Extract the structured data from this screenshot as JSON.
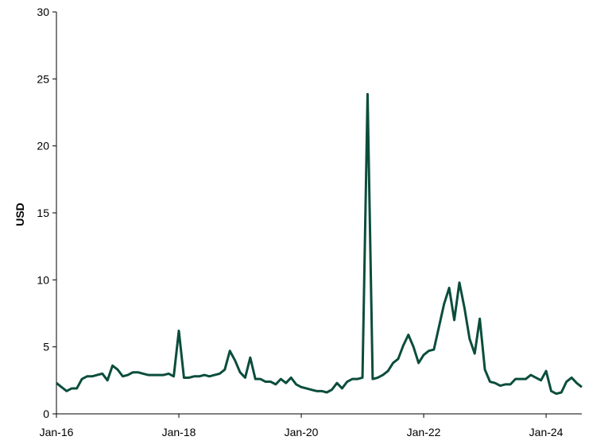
{
  "chart_data": {
    "type": "line",
    "y_label": "USD",
    "x": [
      "2016-01",
      "2016-02",
      "2016-03",
      "2016-04",
      "2016-05",
      "2016-06",
      "2016-07",
      "2016-08",
      "2016-09",
      "2016-10",
      "2016-11",
      "2016-12",
      "2017-01",
      "2017-02",
      "2017-03",
      "2017-04",
      "2017-05",
      "2017-06",
      "2017-07",
      "2017-08",
      "2017-09",
      "2017-10",
      "2017-11",
      "2017-12",
      "2018-01",
      "2018-02",
      "2018-03",
      "2018-04",
      "2018-05",
      "2018-06",
      "2018-07",
      "2018-08",
      "2018-09",
      "2018-10",
      "2018-11",
      "2018-12",
      "2019-01",
      "2019-02",
      "2019-03",
      "2019-04",
      "2019-05",
      "2019-06",
      "2019-07",
      "2019-08",
      "2019-09",
      "2019-10",
      "2019-11",
      "2019-12",
      "2020-01",
      "2020-02",
      "2020-03",
      "2020-04",
      "2020-05",
      "2020-06",
      "2020-07",
      "2020-08",
      "2020-09",
      "2020-10",
      "2020-11",
      "2020-12",
      "2021-01",
      "2021-02",
      "2021-03",
      "2021-04",
      "2021-05",
      "2021-06",
      "2021-07",
      "2021-08",
      "2021-09",
      "2021-10",
      "2021-11",
      "2021-12",
      "2022-01",
      "2022-02",
      "2022-03",
      "2022-04",
      "2022-05",
      "2022-06",
      "2022-07",
      "2022-08",
      "2022-09",
      "2022-10",
      "2022-11",
      "2022-12",
      "2023-01",
      "2023-02",
      "2023-03",
      "2023-04",
      "2023-05",
      "2023-06",
      "2023-07",
      "2023-08",
      "2023-09",
      "2023-10",
      "2023-11",
      "2023-12",
      "2024-01",
      "2024-02",
      "2024-03",
      "2024-04",
      "2024-05",
      "2024-06",
      "2024-07",
      "2024-08"
    ],
    "series": [
      {
        "name": "USD",
        "color": "#0b4d3c",
        "values": [
          2.3,
          2.0,
          1.7,
          1.9,
          1.9,
          2.6,
          2.8,
          2.8,
          2.9,
          3.0,
          2.5,
          3.6,
          3.3,
          2.8,
          2.9,
          3.1,
          3.1,
          3.0,
          2.9,
          2.9,
          2.9,
          2.9,
          3.0,
          2.8,
          6.2,
          2.7,
          2.7,
          2.8,
          2.8,
          2.9,
          2.8,
          2.9,
          3.0,
          3.3,
          4.7,
          4.0,
          3.1,
          2.7,
          4.2,
          2.6,
          2.6,
          2.4,
          2.4,
          2.2,
          2.6,
          2.3,
          2.7,
          2.2,
          2.0,
          1.9,
          1.8,
          1.7,
          1.7,
          1.6,
          1.8,
          2.3,
          1.9,
          2.4,
          2.6,
          2.6,
          2.7,
          23.86,
          2.6,
          2.7,
          2.9,
          3.2,
          3.8,
          4.1,
          5.1,
          5.9,
          5.0,
          3.8,
          4.4,
          4.7,
          4.8,
          6.5,
          8.2,
          9.4,
          7.0,
          9.8,
          7.9,
          5.6,
          4.5,
          7.1,
          3.3,
          2.4,
          2.3,
          2.1,
          2.2,
          2.2,
          2.6,
          2.6,
          2.6,
          2.9,
          2.7,
          2.5,
          3.2,
          1.7,
          1.5,
          1.6,
          2.4,
          2.7,
          2.3,
          2.0
        ]
      }
    ],
    "xlim": [
      "2016-01",
      "2024-08"
    ],
    "xticks": [
      {
        "value": "2016-01",
        "label": "Jan-16"
      },
      {
        "value": "2018-01",
        "label": "Jan-18"
      },
      {
        "value": "2020-01",
        "label": "Jan-20"
      },
      {
        "value": "2022-01",
        "label": "Jan-22"
      },
      {
        "value": "2024-01",
        "label": "Jan-24"
      }
    ],
    "ylim": [
      0,
      30
    ],
    "yticks": [
      0,
      5,
      10,
      15,
      20,
      25,
      30
    ],
    "grid": false
  }
}
